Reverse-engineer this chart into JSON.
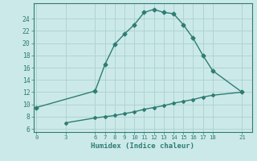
{
  "xlabel": "Humidex (Indice chaleur)",
  "background_color": "#cce9e9",
  "line_color": "#2e7d72",
  "grid_color": "#afd4d0",
  "upper_x": [
    0,
    6,
    7,
    8,
    9,
    10,
    11,
    12,
    13,
    14,
    15,
    16,
    17,
    18,
    21
  ],
  "upper_y": [
    9.5,
    12.2,
    16.5,
    19.8,
    21.5,
    23.0,
    25.0,
    25.5,
    25.0,
    24.8,
    23.0,
    20.8,
    18.0,
    15.5,
    12.0
  ],
  "lower_x": [
    3,
    6,
    7,
    8,
    9,
    10,
    11,
    12,
    13,
    14,
    15,
    16,
    17,
    18,
    21
  ],
  "lower_y": [
    7.0,
    7.8,
    8.0,
    8.2,
    8.5,
    8.8,
    9.2,
    9.5,
    9.8,
    10.2,
    10.5,
    10.8,
    11.2,
    11.5,
    12.0
  ],
  "xticks": [
    0,
    3,
    6,
    7,
    8,
    9,
    10,
    11,
    12,
    13,
    14,
    15,
    16,
    17,
    18,
    21
  ],
  "yticks": [
    6,
    8,
    10,
    12,
    14,
    16,
    18,
    20,
    22,
    24
  ],
  "ylim": [
    5.5,
    26.5
  ],
  "xlim": [
    -0.3,
    22.0
  ]
}
